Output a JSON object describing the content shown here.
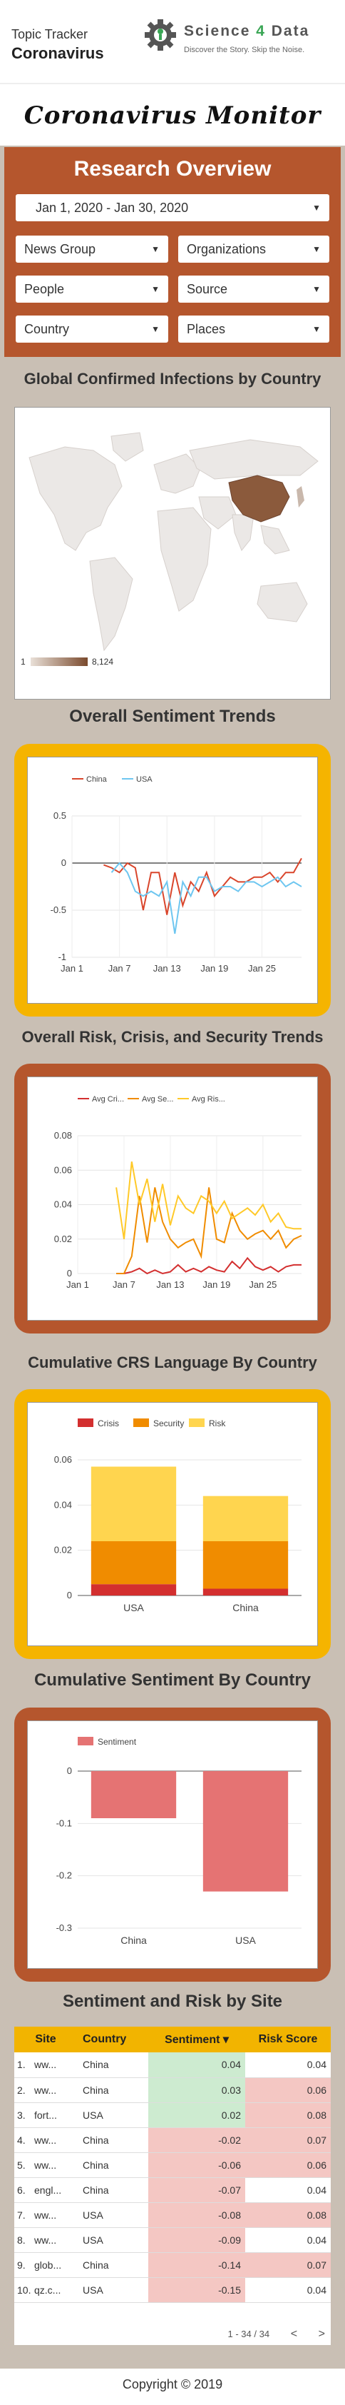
{
  "header": {
    "topic_label": "Topic Tracker",
    "topic_name": "Coronavirus",
    "logo_word_a": "Science",
    "logo_word_num": "4",
    "logo_word_b": "Data",
    "logo_tagline": "Discover the Story. Skip the Noise."
  },
  "title": "Coronavirus Monitor",
  "research": {
    "title": "Research Overview",
    "date_range": "Jan 1, 2020 - Jan 30, 2020",
    "filters": [
      "News Group",
      "Organizations",
      "People",
      "Source",
      "Country",
      "Places"
    ]
  },
  "map": {
    "title": "Global Confirmed Infections by Country",
    "legend_min": "1",
    "legend_max": "8,124"
  },
  "sentiment_trends": {
    "title": "Overall Sentiment Trends",
    "legend": [
      "China",
      "USA"
    ],
    "colors": [
      "#d9452b",
      "#6ec6f0"
    ],
    "y_ticks": [
      "0.5",
      "0",
      "-0.5",
      "-1"
    ],
    "x_ticks": [
      "Jan 1",
      "Jan 7",
      "Jan 13",
      "Jan 19",
      "Jan 25"
    ]
  },
  "crs_trends": {
    "title": "Overall Risk, Crisis, and Security Trends",
    "legend": [
      "Avg Cri...",
      "Avg Se...",
      "Avg Ris..."
    ],
    "colors": [
      "#d32f2f",
      "#f08c00",
      "#ffc928"
    ],
    "y_ticks": [
      "0.08",
      "0.06",
      "0.04",
      "0.02",
      "0"
    ],
    "x_ticks": [
      "Jan 1",
      "Jan 7",
      "Jan 13",
      "Jan 19",
      "Jan 25"
    ]
  },
  "crs_country": {
    "title": "Cumulative CRS Language By Country",
    "legend": [
      "Crisis",
      "Security",
      "Risk"
    ],
    "colors": [
      "#d32f2f",
      "#f08c00",
      "#ffd54f"
    ],
    "y_ticks": [
      "0.06",
      "0.04",
      "0.02",
      "0"
    ],
    "categories": [
      "USA",
      "China"
    ]
  },
  "sent_country": {
    "title": "Cumulative Sentiment By Country",
    "legend": [
      "Sentiment"
    ],
    "colors": [
      "#e57373"
    ],
    "y_ticks": [
      "0",
      "-0.1",
      "-0.2",
      "-0.3"
    ],
    "categories": [
      "China",
      "USA"
    ]
  },
  "chart_data": [
    {
      "type": "line",
      "title": "Overall Sentiment Trends",
      "x": [
        "Jan 1",
        "Jan 2",
        "Jan 3",
        "Jan 4",
        "Jan 5",
        "Jan 6",
        "Jan 7",
        "Jan 8",
        "Jan 9",
        "Jan 10",
        "Jan 11",
        "Jan 12",
        "Jan 13",
        "Jan 14",
        "Jan 15",
        "Jan 16",
        "Jan 17",
        "Jan 18",
        "Jan 19",
        "Jan 20",
        "Jan 21",
        "Jan 22",
        "Jan 23",
        "Jan 24",
        "Jan 25",
        "Jan 26",
        "Jan 27",
        "Jan 28",
        "Jan 29",
        "Jan 30"
      ],
      "series": [
        {
          "name": "China",
          "values": [
            null,
            null,
            null,
            null,
            -0.02,
            -0.05,
            -0.1,
            0.0,
            -0.05,
            -0.5,
            -0.1,
            -0.1,
            -0.55,
            -0.1,
            -0.45,
            -0.2,
            -0.3,
            -0.1,
            -0.35,
            -0.25,
            -0.15,
            -0.2,
            -0.2,
            -0.15,
            -0.15,
            -0.1,
            -0.2,
            -0.1,
            -0.1,
            0.05
          ]
        },
        {
          "name": "USA",
          "values": [
            null,
            null,
            null,
            null,
            null,
            -0.1,
            0.0,
            -0.1,
            -0.3,
            -0.35,
            -0.3,
            -0.35,
            -0.2,
            -0.75,
            -0.2,
            -0.35,
            -0.15,
            -0.15,
            -0.3,
            -0.25,
            -0.25,
            -0.3,
            -0.2,
            -0.2,
            -0.25,
            -0.2,
            -0.15,
            -0.25,
            -0.2,
            -0.25
          ]
        }
      ],
      "ylim": [
        -1,
        0.5
      ]
    },
    {
      "type": "line",
      "title": "Overall Risk, Crisis, and Security Trends",
      "x": [
        "Jan 1",
        "Jan 2",
        "Jan 3",
        "Jan 4",
        "Jan 5",
        "Jan 6",
        "Jan 7",
        "Jan 8",
        "Jan 9",
        "Jan 10",
        "Jan 11",
        "Jan 12",
        "Jan 13",
        "Jan 14",
        "Jan 15",
        "Jan 16",
        "Jan 17",
        "Jan 18",
        "Jan 19",
        "Jan 20",
        "Jan 21",
        "Jan 22",
        "Jan 23",
        "Jan 24",
        "Jan 25",
        "Jan 26",
        "Jan 27",
        "Jan 28",
        "Jan 29",
        "Jan 30"
      ],
      "series": [
        {
          "name": "Avg Crisis",
          "values": [
            null,
            null,
            null,
            null,
            null,
            0,
            0,
            0.001,
            0.003,
            0,
            0.002,
            0,
            0.001,
            0.005,
            0.001,
            0.003,
            0.001,
            0.004,
            0.002,
            0.001,
            0.007,
            0.003,
            0.009,
            0.004,
            0.002,
            0.004,
            0.001,
            0.004,
            0.005,
            0.005
          ]
        },
        {
          "name": "Avg Security",
          "values": [
            null,
            null,
            null,
            null,
            null,
            0,
            0,
            0.01,
            0.045,
            0.018,
            0.05,
            0.03,
            0.02,
            0.015,
            0.018,
            0.02,
            0.01,
            0.05,
            0.02,
            0.018,
            0.035,
            0.025,
            0.02,
            0.023,
            0.025,
            0.02,
            0.025,
            0.015,
            0.02,
            0.022
          ]
        },
        {
          "name": "Avg Risk",
          "values": [
            null,
            null,
            null,
            null,
            null,
            0.05,
            0.02,
            0.065,
            0.04,
            0.055,
            0.03,
            0.052,
            0.028,
            0.045,
            0.038,
            0.035,
            0.045,
            0.042,
            0.035,
            0.042,
            0.032,
            0.035,
            0.038,
            0.034,
            0.04,
            0.03,
            0.035,
            0.027,
            0.026,
            0.026
          ]
        }
      ],
      "ylim": [
        0,
        0.08
      ]
    },
    {
      "type": "bar",
      "title": "Cumulative CRS Language By Country",
      "categories": [
        "USA",
        "China"
      ],
      "series": [
        {
          "name": "Crisis",
          "values": [
            0.005,
            0.003
          ]
        },
        {
          "name": "Security",
          "values": [
            0.019,
            0.021
          ]
        },
        {
          "name": "Risk",
          "values": [
            0.033,
            0.02
          ]
        }
      ],
      "stacked": true,
      "ylim": [
        0,
        0.06
      ]
    },
    {
      "type": "bar",
      "title": "Cumulative Sentiment By Country",
      "categories": [
        "China",
        "USA"
      ],
      "series": [
        {
          "name": "Sentiment",
          "values": [
            -0.09,
            -0.23
          ]
        }
      ],
      "ylim": [
        -0.3,
        0
      ]
    }
  ],
  "table": {
    "title": "Sentiment and Risk by Site",
    "headers": [
      "Site",
      "Country",
      "Sentiment ▾",
      "Risk Score"
    ],
    "rows": [
      {
        "idx": "1.",
        "site": "ww...",
        "country": "China",
        "sentiment": "0.04",
        "risk": "0.04"
      },
      {
        "idx": "2.",
        "site": "ww...",
        "country": "China",
        "sentiment": "0.03",
        "risk": "0.06"
      },
      {
        "idx": "3.",
        "site": "fort...",
        "country": "USA",
        "sentiment": "0.02",
        "risk": "0.08"
      },
      {
        "idx": "4.",
        "site": "ww...",
        "country": "China",
        "sentiment": "-0.02",
        "risk": "0.07"
      },
      {
        "idx": "5.",
        "site": "ww...",
        "country": "China",
        "sentiment": "-0.06",
        "risk": "0.06"
      },
      {
        "idx": "6.",
        "site": "engl...",
        "country": "China",
        "sentiment": "-0.07",
        "risk": "0.04"
      },
      {
        "idx": "7.",
        "site": "ww...",
        "country": "USA",
        "sentiment": "-0.08",
        "risk": "0.08"
      },
      {
        "idx": "8.",
        "site": "ww...",
        "country": "USA",
        "sentiment": "-0.09",
        "risk": "0.04"
      },
      {
        "idx": "9.",
        "site": "glob...",
        "country": "China",
        "sentiment": "-0.14",
        "risk": "0.07"
      },
      {
        "idx": "10.",
        "site": "qz.c...",
        "country": "USA",
        "sentiment": "-0.15",
        "risk": "0.04"
      }
    ],
    "pager": "1 - 34 / 34",
    "colors": {
      "pos": "#cdebd0",
      "neg": "#f4c7c3",
      "risk_high": "#f4c7c3"
    }
  },
  "footer": "Copyright © 2019"
}
